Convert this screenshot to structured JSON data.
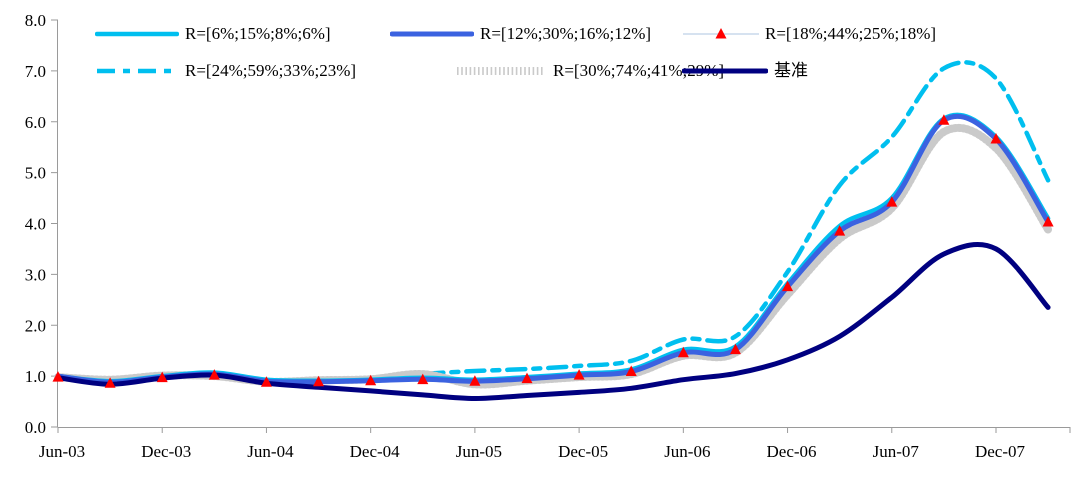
{
  "chart_data": {
    "type": "line",
    "title": "",
    "xlabel": "",
    "ylabel": "",
    "ylim": [
      0,
      8
    ],
    "y_tick_step": 1,
    "y_tick_labels": [
      "0.0",
      "1.0",
      "2.0",
      "3.0",
      "4.0",
      "5.0",
      "6.0",
      "7.0",
      "8.0"
    ],
    "x_tick_labels": [
      "Jun-03",
      "Dec-03",
      "Jun-04",
      "Dec-04",
      "Jun-05",
      "Dec-05",
      "Jun-06",
      "Dec-06",
      "Jun-07",
      "Dec-07"
    ],
    "grid": false,
    "legend_position": "top",
    "months_per_point": 3,
    "categories": [
      "Jun-03",
      "Sep-03",
      "Dec-03",
      "Mar-04",
      "Jun-04",
      "Sep-04",
      "Dec-04",
      "Mar-05",
      "Jun-05",
      "Sep-05",
      "Dec-05",
      "Mar-06",
      "Jun-06",
      "Sep-06",
      "Dec-06",
      "Mar-07",
      "Jun-07",
      "Sep-07",
      "Dec-07",
      "Mar-08"
    ],
    "series": [
      {
        "label": "R=[6%;15%;8%;6%]",
        "style": "solid",
        "color": "#00BFEF",
        "width": 4.5,
        "values": [
          1.0,
          0.9,
          1.0,
          1.07,
          0.93,
          0.91,
          0.93,
          0.97,
          0.93,
          0.98,
          1.05,
          1.13,
          1.52,
          1.58,
          2.82,
          3.95,
          4.5,
          6.06,
          5.7,
          4.1
        ]
      },
      {
        "label": "R=[12%;30%;16%;12%]",
        "style": "solid",
        "color": "#3B62E0",
        "width": 5,
        "values": [
          1.0,
          0.88,
          0.98,
          1.04,
          0.9,
          0.89,
          0.91,
          0.94,
          0.9,
          0.95,
          1.02,
          1.09,
          1.46,
          1.52,
          2.76,
          3.85,
          4.42,
          6.03,
          5.66,
          4.03
        ]
      },
      {
        "label": "R=[18%;44%;25%;18%]",
        "style": "markers",
        "color": "#FF0000",
        "line_color": "#C9D8EC",
        "width": 1.5,
        "values": [
          0.98,
          0.86,
          0.97,
          1.02,
          0.88,
          0.89,
          0.91,
          0.93,
          0.9,
          0.95,
          1.02,
          1.09,
          1.46,
          1.52,
          2.76,
          3.85,
          4.42,
          6.03,
          5.66,
          4.03
        ]
      },
      {
        "label": "R=[24%;59%;33%;23%]",
        "style": "dash",
        "color": "#00BFEF",
        "width": 4.5,
        "dash": "18 8 7 8",
        "values": [
          1.0,
          0.89,
          0.99,
          1.05,
          0.91,
          0.9,
          0.93,
          1.04,
          1.1,
          1.14,
          1.2,
          1.3,
          1.72,
          1.78,
          3.05,
          4.75,
          5.7,
          7.05,
          6.85,
          4.85
        ]
      },
      {
        "label": "R=[30%;74%;41%;29%]",
        "style": "hatch",
        "color": "#CACACA",
        "width": 8,
        "dash": "1.6 2.6",
        "values": [
          0.98,
          0.93,
          1.01,
          1.0,
          0.89,
          0.92,
          0.94,
          1.04,
          0.84,
          0.91,
          0.98,
          1.04,
          1.4,
          1.46,
          2.6,
          3.7,
          4.3,
          5.8,
          5.48,
          3.88
        ]
      },
      {
        "label": "基准",
        "style": "solid",
        "color": "#000080",
        "width": 5,
        "values": [
          0.97,
          0.84,
          0.96,
          1.02,
          0.86,
          0.78,
          0.71,
          0.63,
          0.56,
          0.62,
          0.68,
          0.76,
          0.93,
          1.05,
          1.32,
          1.78,
          2.55,
          3.4,
          3.5,
          2.35
        ]
      }
    ],
    "colors": {
      "axis": "#9a9a9a",
      "text": "#000000",
      "background": "#ffffff"
    }
  }
}
